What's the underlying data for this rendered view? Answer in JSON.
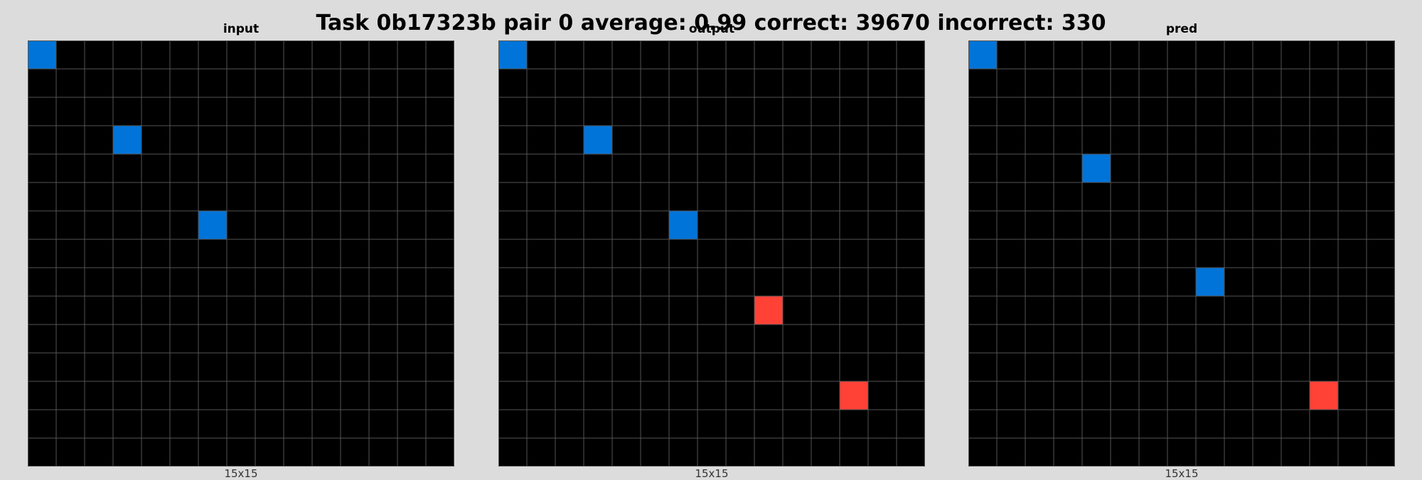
{
  "title": "Task 0b17323b pair 0 average: 0.99 correct: 39670 incorrect: 330",
  "colors": {
    "background": "#dcdcdc",
    "cell_empty": "#000000",
    "grid_line": "#555555",
    "blue": "#0074d9",
    "red": "#ff4136"
  },
  "panels": [
    {
      "label": "input",
      "size_label": "15x15",
      "rows": 15,
      "cols": 15,
      "cells": [
        {
          "row": 0,
          "col": 0,
          "color": "blue"
        },
        {
          "row": 3,
          "col": 3,
          "color": "blue"
        },
        {
          "row": 6,
          "col": 6,
          "color": "blue"
        }
      ]
    },
    {
      "label": "output",
      "size_label": "15x15",
      "rows": 15,
      "cols": 15,
      "cells": [
        {
          "row": 0,
          "col": 0,
          "color": "blue"
        },
        {
          "row": 3,
          "col": 3,
          "color": "blue"
        },
        {
          "row": 6,
          "col": 6,
          "color": "blue"
        },
        {
          "row": 9,
          "col": 9,
          "color": "red"
        },
        {
          "row": 12,
          "col": 12,
          "color": "red"
        }
      ]
    },
    {
      "label": "pred",
      "size_label": "15x15",
      "rows": 15,
      "cols": 15,
      "cells": [
        {
          "row": 0,
          "col": 0,
          "color": "blue"
        },
        {
          "row": 4,
          "col": 4,
          "color": "blue"
        },
        {
          "row": 8,
          "col": 8,
          "color": "blue"
        },
        {
          "row": 12,
          "col": 12,
          "color": "red"
        }
      ]
    }
  ]
}
